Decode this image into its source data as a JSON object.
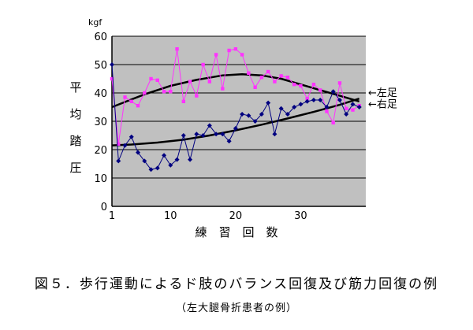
{
  "figure": {
    "title": "図５．歩行運動によるド肢のバランス回復及び筋力回復の例",
    "subtitle": "（左大腿骨折患者の例）"
  },
  "chart_data": {
    "type": "line",
    "ylabel": "平均踏圧",
    "yunit": "kgf",
    "xlabel": "練　習　回　数",
    "ylim": [
      0,
      60
    ],
    "xlim": [
      1,
      40
    ],
    "yticks": [
      0,
      10,
      20,
      30,
      40,
      50,
      60
    ],
    "xticks": [
      1,
      10,
      20,
      30
    ],
    "grid": "horizontal",
    "plot_background": "#c0c0c0",
    "series": [
      {
        "name": "←左足",
        "color": "#ff33ff",
        "marker": "square",
        "x": [
          1,
          2,
          3,
          4,
          5,
          6,
          7,
          8,
          9,
          10,
          11,
          12,
          13,
          14,
          15,
          16,
          17,
          18,
          19,
          20,
          21,
          22,
          23,
          24,
          25,
          26,
          27,
          28,
          29,
          30,
          31,
          32,
          33,
          34,
          35,
          36,
          37,
          38,
          39
        ],
        "y": [
          45,
          22,
          38.5,
          37,
          35.5,
          40,
          45,
          44.5,
          40.5,
          40.5,
          55.5,
          37,
          44,
          39,
          50,
          44,
          53.5,
          41.5,
          55,
          55.5,
          53.5,
          47,
          42,
          45.5,
          47.5,
          44,
          46,
          45.5,
          43,
          42.5,
          38,
          43,
          41,
          33.5,
          29.5,
          43.5,
          34.5,
          34,
          35.5
        ]
      },
      {
        "name": "←右足",
        "color": "#000080",
        "marker": "diamond",
        "x": [
          1,
          2,
          3,
          4,
          5,
          6,
          7,
          8,
          9,
          10,
          11,
          12,
          13,
          14,
          15,
          16,
          17,
          18,
          19,
          20,
          21,
          22,
          23,
          24,
          25,
          26,
          27,
          28,
          29,
          30,
          31,
          32,
          33,
          34,
          35,
          36,
          37,
          38,
          39
        ],
        "y": [
          50,
          16,
          21.5,
          24.5,
          19,
          16,
          13,
          13.5,
          18,
          14.5,
          16.5,
          25,
          16.5,
          25.5,
          25,
          28.5,
          25.5,
          25.5,
          23,
          27.5,
          32.5,
          32,
          30,
          32.5,
          36.5,
          25.5,
          34.5,
          32.5,
          35,
          36,
          37,
          37.5,
          37.5,
          35,
          40.5,
          37.5,
          32.5,
          36,
          35
        ]
      }
    ],
    "trendlines": [
      {
        "series": "←左足",
        "color": "#000000",
        "x": [
          1,
          3,
          6,
          10,
          14,
          18,
          21,
          24,
          27,
          30,
          33,
          36,
          39
        ],
        "y": [
          35,
          36.8,
          39.5,
          42.5,
          44.6,
          46.2,
          46.6,
          46.2,
          45,
          43,
          41,
          39,
          37
        ]
      },
      {
        "series": "←右足",
        "color": "#000000",
        "x": [
          1,
          4,
          8,
          12,
          16,
          20,
          24,
          28,
          32,
          36,
          39
        ],
        "y": [
          21.5,
          21.8,
          22.5,
          23.5,
          25,
          26.8,
          28.8,
          31,
          33.3,
          35.8,
          38
        ]
      }
    ]
  }
}
